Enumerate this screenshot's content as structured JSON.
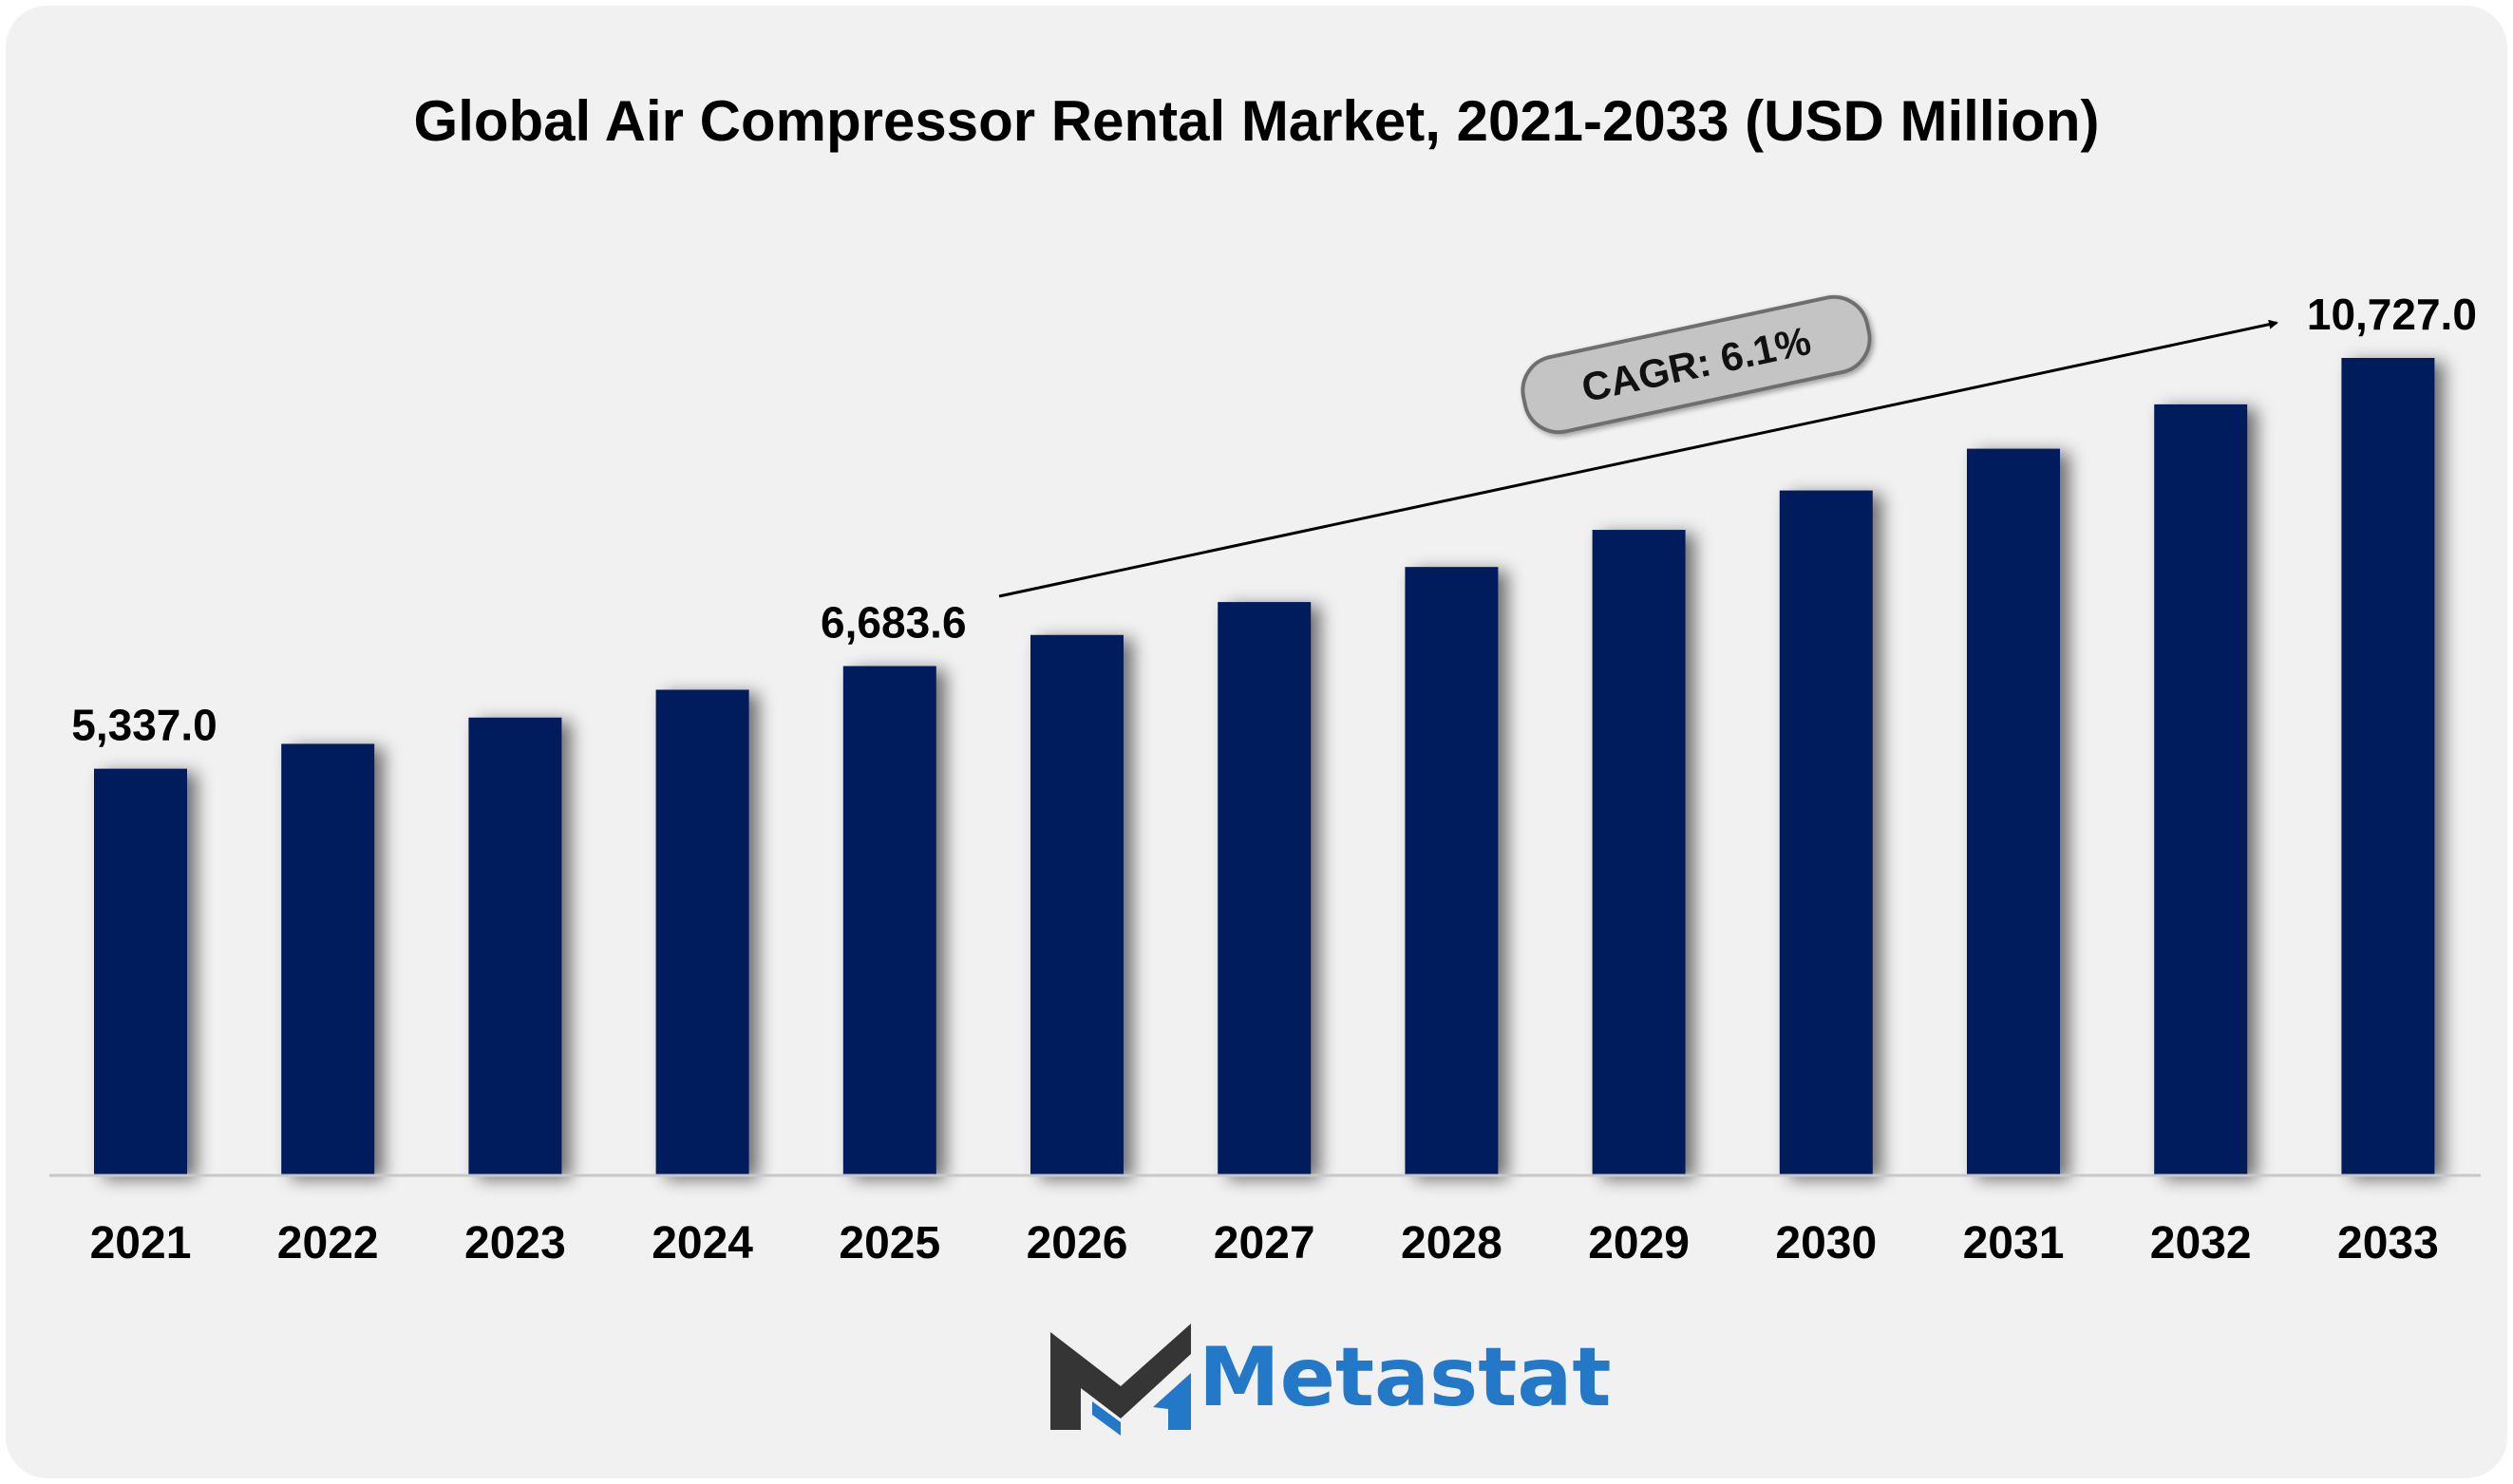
{
  "chart_data": {
    "type": "bar",
    "title": "Global Air Compressor Rental Market, 2021-2033 (USD Million)",
    "xlabel": "",
    "ylabel": "",
    "categories": [
      "2021",
      "2022",
      "2023",
      "2024",
      "2025",
      "2026",
      "2027",
      "2028",
      "2029",
      "2030",
      "2031",
      "2032",
      "2033"
    ],
    "values": [
      5337.0,
      5663.0,
      6008.0,
      6373.0,
      6683.6,
      7092.0,
      7524.0,
      7984.0,
      8471.0,
      8988.0,
      9536.0,
      10118.0,
      10727.0
    ],
    "data_labels": [
      {
        "category": "2021",
        "text": "5,337.0"
      },
      {
        "category": "2025",
        "text": "6,683.6"
      },
      {
        "category": "2033",
        "text": "10,727.0"
      }
    ],
    "annotation": {
      "text": "CAGR: 6.1%"
    },
    "ylim": [
      0,
      11500
    ],
    "grid": false,
    "legend": "none",
    "bar_color": "#021f5c"
  },
  "brand": {
    "name": "Metastat",
    "logo_icon": "metastat-m-logo-icon",
    "colors": {
      "primary": "#2478c8",
      "dark": "#333333"
    }
  },
  "background_color": "#f1f1f1"
}
